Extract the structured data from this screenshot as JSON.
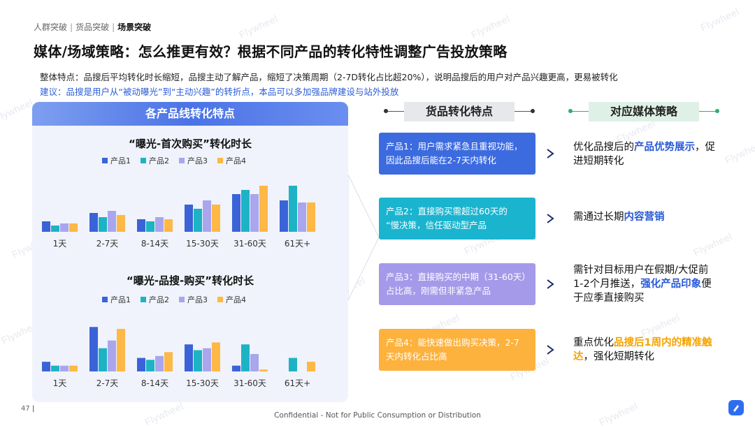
{
  "breadcrumb": {
    "item1": "人群突破",
    "item2": "货品突破",
    "item3": "场景突破"
  },
  "title": "媒体/场域策略：怎么推更有效？根据不同产品的转化特性调整广告投放策略",
  "summary": "整体特点：品搜后平均转化时长缩短，品搜主动了解产品，缩短了决策周期（2-7D转化占比超20%），说明品搜后的用户对产品兴趣更高，更易被转化",
  "suggestion": "建议：品搜是用户从“被动曝光”到“主动兴趣”的转折点，本品可以多加强品牌建设与站外投放",
  "watermark": "Flywheel",
  "left_panel_title": "各产品线转化特点",
  "colors": {
    "p1": "#3a63d8",
    "p2": "#1db3c4",
    "p3": "#a9a6ee",
    "p4": "#fdb845",
    "blue_box": "#3c6be0",
    "teal_box": "#1ab4cf",
    "purple_box": "#a59ae9",
    "orange_box": "#fdb23d",
    "accent_blue": "#2a5bd7",
    "accent_orange": "#f5a300"
  },
  "chart_data": [
    {
      "type": "bar",
      "title": "“曝光-首次购买”转化时长",
      "categories": [
        "1天",
        "2-7天",
        "8-14天",
        "15-30天",
        "31-60天",
        "61天+"
      ],
      "series": [
        {
          "name": "产品1",
          "values": [
            5,
            9,
            6,
            13,
            18,
            15
          ]
        },
        {
          "name": "产品2",
          "values": [
            3,
            7,
            5,
            11,
            20,
            22
          ]
        },
        {
          "name": "产品3",
          "values": [
            4,
            10,
            7,
            15,
            18,
            14
          ]
        },
        {
          "name": "产品4",
          "values": [
            4,
            8,
            6,
            13,
            22,
            14
          ]
        }
      ],
      "ylim": [
        0,
        24
      ],
      "grid": false,
      "legend": "top"
    },
    {
      "type": "bar",
      "title": "“曝光-品搜-购买”转化时长",
      "categories": [
        "1天",
        "2-7天",
        "8-14天",
        "15-30天",
        "31-60天",
        "61天+"
      ],
      "series": [
        {
          "name": "产品1",
          "values": [
            5,
            23,
            7,
            14,
            3,
            0
          ]
        },
        {
          "name": "产品2",
          "values": [
            3,
            12,
            6,
            11,
            14,
            7
          ]
        },
        {
          "name": "产品3",
          "values": [
            3,
            16,
            8,
            12,
            9,
            0
          ]
        },
        {
          "name": "产品4",
          "values": [
            3,
            22,
            10,
            15,
            1,
            5
          ]
        }
      ],
      "ylim": [
        0,
        26
      ],
      "grid": false,
      "legend": "top"
    }
  ],
  "columns": {
    "products_head": "货品转化特点",
    "strategy_head": "对应媒体策略"
  },
  "products": [
    {
      "line1": "产品1：用户需求紧急且重视功能，",
      "line2": "因此品搜后能在2-7天内转化"
    },
    {
      "line1": "产品2：直接购买需超过60天的",
      "line2": "“慢决策，信任驱动型产品"
    },
    {
      "line1": "产品3：直接购买的中期（31-60天）",
      "line2": "占比高，刚需但非紧急产品"
    },
    {
      "line1": "产品4：能快速做出购买决策，2-7",
      "line2": "天内转化占比高"
    }
  ],
  "strategies": {
    "s1": {
      "pre": "优化品搜后的",
      "hl": "产品优势展示",
      "post": "，促进短期转化"
    },
    "s2": {
      "pre": "需通过长期",
      "hl": "内容营销",
      "post": ""
    },
    "s3": {
      "pre": "需针对目标用户在假期/大促前1-2个月推送，",
      "hl": "强化产品印象",
      "post": "便于应季直接购买"
    },
    "s4": {
      "pre": "重点优化",
      "hl": "品搜后1周内的精准触达",
      "post": "，强化短期转化"
    }
  },
  "footer": {
    "page": "47",
    "confidential": "Confidential - Not for Public Consumption or Distribution"
  }
}
